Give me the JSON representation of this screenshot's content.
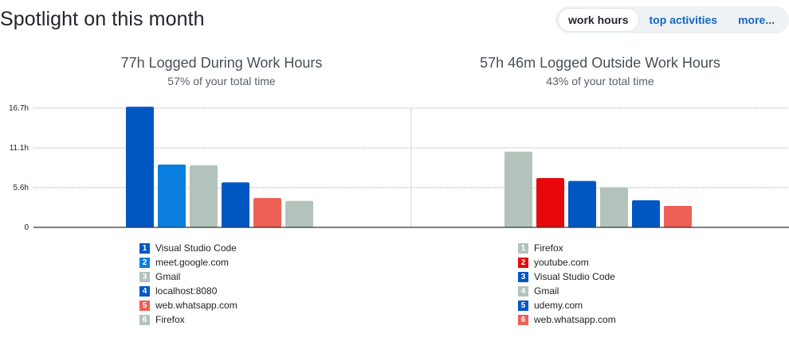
{
  "header": {
    "title": "Spotlight on this month",
    "tabs": [
      {
        "label": "work hours",
        "active": true
      },
      {
        "label": "top activities",
        "active": false
      },
      {
        "label": "more...",
        "active": false
      }
    ]
  },
  "chart_data": {
    "type": "bar",
    "y_ticks": [
      "0",
      "5.6h",
      "11.1h",
      "16.7h"
    ],
    "ylim": [
      0,
      16.7
    ],
    "grid": true,
    "panels": [
      {
        "title": "77h Logged During Work Hours",
        "subtitle": "57% of your total time",
        "bars": [
          {
            "rank": "1",
            "label": "Visual Studio Code",
            "value": 16.9,
            "color": "#0057c2"
          },
          {
            "rank": "2",
            "label": "meet.google.com",
            "value": 8.8,
            "color": "#0a7fdf"
          },
          {
            "rank": "3",
            "label": "Gmail",
            "value": 8.7,
            "color": "#b3c3bc"
          },
          {
            "rank": "4",
            "label": "localhost:8080",
            "value": 6.3,
            "color": "#0057c2"
          },
          {
            "rank": "5",
            "label": "web.whatsapp.com",
            "value": 4.1,
            "color": "#ee5f54"
          },
          {
            "rank": "6",
            "label": "Firefox",
            "value": 3.7,
            "color": "#b3c3bc"
          }
        ]
      },
      {
        "title": "57h 46m Logged Outside Work Hours",
        "subtitle": "43% of your total time",
        "bars": [
          {
            "rank": "1",
            "label": "Firefox",
            "value": 10.6,
            "color": "#b3c3bc"
          },
          {
            "rank": "2",
            "label": "youtube.com",
            "value": 6.9,
            "color": "#e8080b"
          },
          {
            "rank": "3",
            "label": "Visual Studio Code",
            "value": 6.5,
            "color": "#0057c2"
          },
          {
            "rank": "4",
            "label": "Gmail",
            "value": 5.6,
            "color": "#b3c3bc"
          },
          {
            "rank": "5",
            "label": "udemy.com",
            "value": 3.8,
            "color": "#0057c2"
          },
          {
            "rank": "6",
            "label": "web.whatsapp.com",
            "value": 3.0,
            "color": "#ee5f54"
          }
        ]
      }
    ]
  }
}
